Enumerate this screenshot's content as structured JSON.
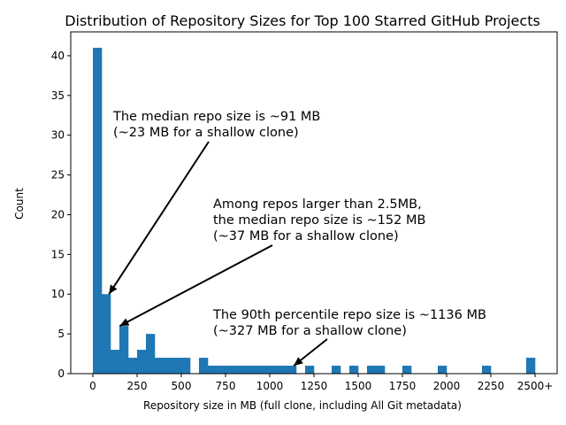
{
  "chart_data": {
    "type": "bar",
    "title": "Distribution of Repository Sizes for Top 100 Starred GitHub Projects",
    "xlabel": "Repository size in MB (full clone, including All Git metadata)",
    "ylabel": "Count",
    "xlim": [
      -125,
      2625
    ],
    "ylim": [
      0,
      43
    ],
    "bin_width": 50,
    "x_ticks": [
      {
        "value": 0,
        "label": "0"
      },
      {
        "value": 250,
        "label": "250"
      },
      {
        "value": 500,
        "label": "500"
      },
      {
        "value": 750,
        "label": "750"
      },
      {
        "value": 1000,
        "label": "1000"
      },
      {
        "value": 1250,
        "label": "1250"
      },
      {
        "value": 1500,
        "label": "1500"
      },
      {
        "value": 1750,
        "label": "1750"
      },
      {
        "value": 2000,
        "label": "2000"
      },
      {
        "value": 2250,
        "label": "2250"
      },
      {
        "value": 2500,
        "label": "2500+"
      }
    ],
    "y_ticks": [
      0,
      5,
      10,
      15,
      20,
      25,
      30,
      35,
      40
    ],
    "bars": [
      {
        "x0": 0,
        "count": 41
      },
      {
        "x0": 50,
        "count": 10
      },
      {
        "x0": 100,
        "count": 3
      },
      {
        "x0": 150,
        "count": 6
      },
      {
        "x0": 200,
        "count": 2
      },
      {
        "x0": 250,
        "count": 3
      },
      {
        "x0": 300,
        "count": 5
      },
      {
        "x0": 350,
        "count": 2
      },
      {
        "x0": 400,
        "count": 2
      },
      {
        "x0": 450,
        "count": 2
      },
      {
        "x0": 500,
        "count": 2
      },
      {
        "x0": 600,
        "count": 2
      },
      {
        "x0": 650,
        "count": 1
      },
      {
        "x0": 700,
        "count": 1
      },
      {
        "x0": 750,
        "count": 1
      },
      {
        "x0": 800,
        "count": 1
      },
      {
        "x0": 850,
        "count": 1
      },
      {
        "x0": 900,
        "count": 1
      },
      {
        "x0": 950,
        "count": 1
      },
      {
        "x0": 1000,
        "count": 1
      },
      {
        "x0": 1050,
        "count": 1
      },
      {
        "x0": 1100,
        "count": 1
      },
      {
        "x0": 1200,
        "count": 1
      },
      {
        "x0": 1350,
        "count": 1
      },
      {
        "x0": 1450,
        "count": 1
      },
      {
        "x0": 1550,
        "count": 1
      },
      {
        "x0": 1600,
        "count": 1
      },
      {
        "x0": 1750,
        "count": 1
      },
      {
        "x0": 1950,
        "count": 1
      },
      {
        "x0": 2200,
        "count": 1
      },
      {
        "x0": 2450,
        "count": 2
      }
    ],
    "bar_color": "#1f77b4",
    "grid": false,
    "annotations": [
      {
        "lines": [
          "The median repo size is ~91 MB",
          "(~23 MB for a shallow clone)"
        ],
        "target": {
          "x": 91,
          "y": 10
        }
      },
      {
        "lines": [
          "Among repos larger than 2.5MB,",
          "the median repo size is ~152 MB",
          "(~37 MB for a shallow clone)"
        ],
        "target": {
          "x": 152,
          "y": 6
        }
      },
      {
        "lines": [
          "The 90th percentile repo size is ~1136 MB",
          "(~327 MB for a shallow clone)"
        ],
        "target": {
          "x": 1136,
          "y": 1
        }
      }
    ]
  }
}
